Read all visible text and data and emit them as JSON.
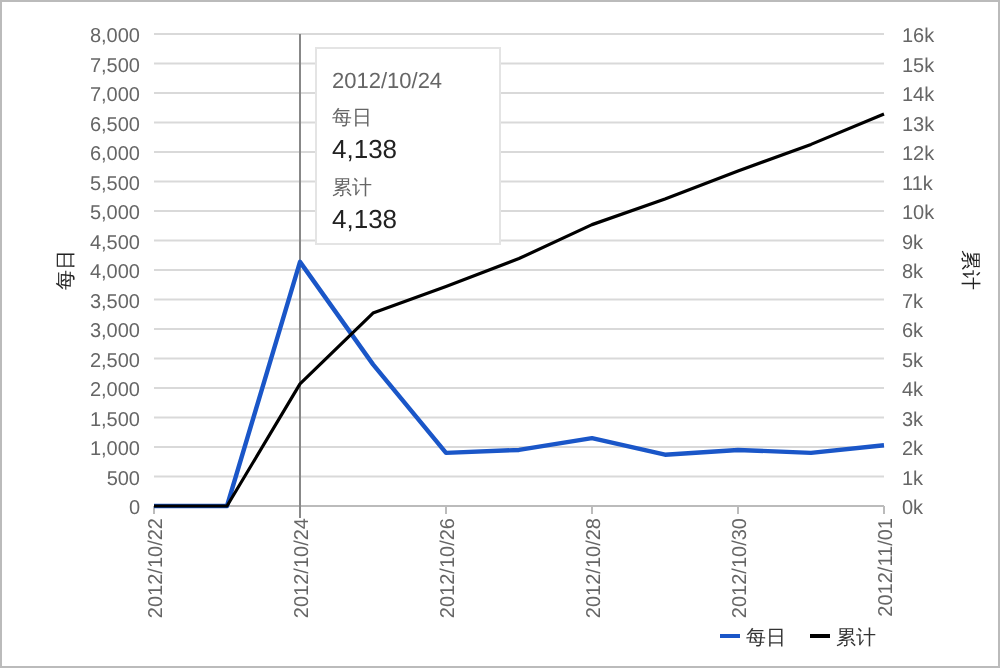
{
  "chart_data": {
    "type": "line",
    "xlabel": null,
    "ylabel": "每日",
    "y2label": "累计",
    "x": [
      "2012-10-22",
      "2012-10-23",
      "2012-10-24",
      "2012-10-25",
      "2012-10-26",
      "2012-10-27",
      "2012-10-28",
      "2012-10-29",
      "2012-10-30",
      "2012-10-31",
      "2012-11-01"
    ],
    "series": [
      {
        "name": "每日",
        "color": "#1a56c8",
        "values": [
          0,
          0,
          4138,
          2400,
          900,
          950,
          1150,
          870,
          950,
          900,
          1030
        ]
      },
      {
        "name": "累计",
        "color": "#000000",
        "axis": "y2",
        "values": [
          0,
          0,
          4138,
          6538,
          7438,
          8388,
          9538,
          10408,
          11358,
          12258,
          13288
        ]
      }
    ],
    "xlim": [
      "2012-10-22",
      "2012-11-01"
    ],
    "xticks": [
      {
        "value": "2012-10-22",
        "label": "2012/10/22"
      },
      {
        "value": "2012-10-24",
        "label": "2012/10/24"
      },
      {
        "value": "2012-10-26",
        "label": "2012/10/26"
      },
      {
        "value": "2012-10-28",
        "label": "2012/10/28"
      },
      {
        "value": "2012-10-30",
        "label": "2012/10/30"
      },
      {
        "value": "2012-11-01",
        "label": "2012/11/01"
      }
    ],
    "ylim": [
      0,
      8000
    ],
    "yticks": [
      0,
      {
        "value": 500,
        "label": "500"
      },
      {
        "value": 1000,
        "label": "1,000"
      },
      {
        "value": 1500,
        "label": "1,500"
      },
      {
        "value": 2000,
        "label": "2,000"
      },
      {
        "value": 2500,
        "label": "2,500"
      },
      {
        "value": 3000,
        "label": "3,000"
      },
      {
        "value": 3500,
        "label": "3,500"
      },
      {
        "value": 4000,
        "label": "4,000"
      },
      {
        "value": 4500,
        "label": "4,500"
      },
      {
        "value": 5000,
        "label": "5,000"
      },
      {
        "value": 5500,
        "label": "5,500"
      },
      {
        "value": 6000,
        "label": "6,000"
      },
      {
        "value": 6500,
        "label": "6,500"
      },
      {
        "value": 7000,
        "label": "7,000"
      },
      {
        "value": 7500,
        "label": "7,500"
      },
      {
        "value": 8000,
        "label": "8,000"
      }
    ],
    "y2lim": [
      0,
      16000
    ],
    "y2ticks": [
      {
        "value": 0,
        "label": "0k"
      },
      {
        "value": 1000,
        "label": "1k"
      },
      {
        "value": 2000,
        "label": "2k"
      },
      {
        "value": 3000,
        "label": "3k"
      },
      {
        "value": 4000,
        "label": "4k"
      },
      {
        "value": 5000,
        "label": "5k"
      },
      {
        "value": 6000,
        "label": "6k"
      },
      {
        "value": 7000,
        "label": "7k"
      },
      {
        "value": 8000,
        "label": "8k"
      },
      {
        "value": 9000,
        "label": "9k"
      },
      {
        "value": 10000,
        "label": "10k"
      },
      {
        "value": 11000,
        "label": "11k"
      },
      {
        "value": 12000,
        "label": "12k"
      },
      {
        "value": 13000,
        "label": "13k"
      },
      {
        "value": 14000,
        "label": "14k"
      },
      {
        "value": 15000,
        "label": "15k"
      },
      {
        "value": 16000,
        "label": "16k"
      }
    ],
    "ref_lines": [
      {
        "axis": "x",
        "value": "2012-10-24",
        "color": "#888888"
      }
    ],
    "annotations": [
      "2012/10/24",
      "每日",
      "4,138",
      "累计",
      "4,138"
    ],
    "grid": "y",
    "legend": "bottom right",
    "marker": "none",
    "line_style": "solid"
  }
}
